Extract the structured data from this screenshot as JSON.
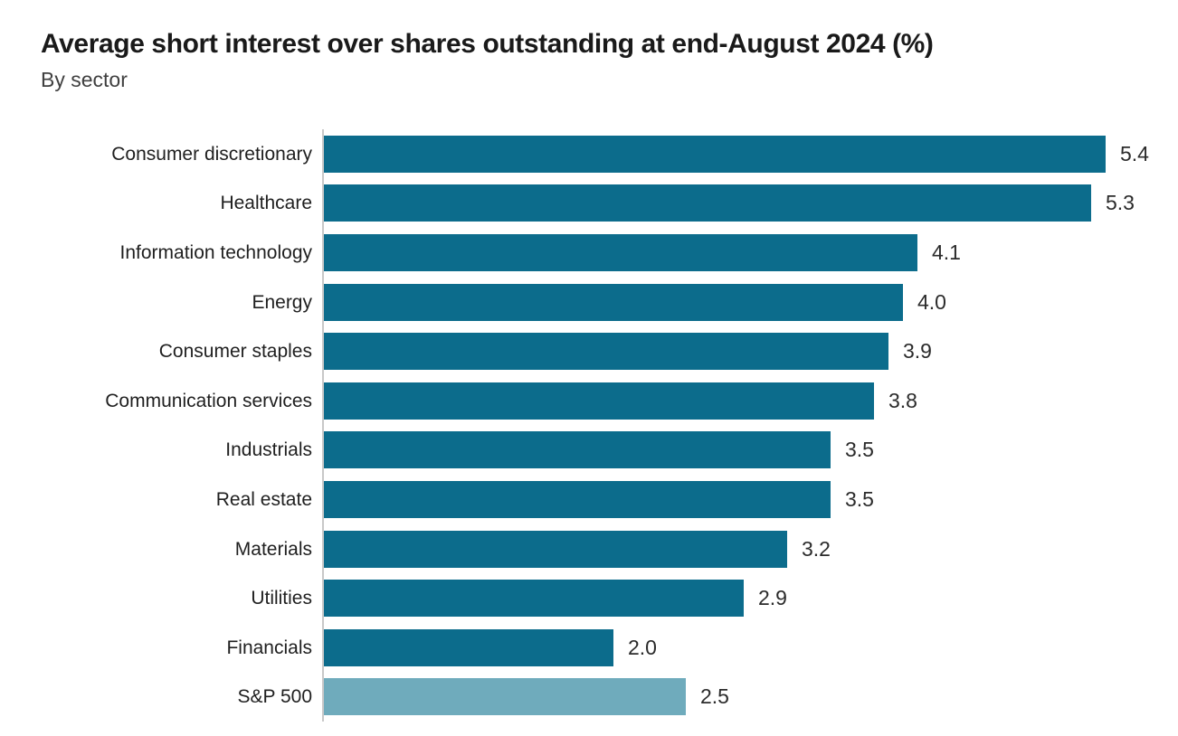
{
  "header": {
    "title": "Average short interest over shares outstanding at end-August 2024 (%)",
    "subtitle": "By sector"
  },
  "chart_data": {
    "type": "bar",
    "orientation": "horizontal",
    "title": "Average short interest over shares outstanding at end-August 2024 (%)",
    "subtitle": "By sector",
    "categories": [
      "Consumer discretionary",
      "Healthcare",
      "Information technology",
      "Energy",
      "Consumer staples",
      "Communication services",
      "Industrials",
      "Real estate",
      "Materials",
      "Utilities",
      "Financials",
      "S&P 500"
    ],
    "values": [
      5.4,
      5.3,
      4.1,
      4.0,
      3.9,
      3.8,
      3.5,
      3.5,
      3.2,
      2.9,
      2.0,
      2.5
    ],
    "value_labels": [
      "5.4",
      "5.3",
      "4.1",
      "4.0",
      "3.9",
      "3.8",
      "3.5",
      "3.5",
      "3.2",
      "2.9",
      "2.0",
      "2.5"
    ],
    "xlim": [
      0,
      5.9
    ],
    "grid": false,
    "legend": false,
    "highlight_category": "S&P 500",
    "colors": {
      "sector_bar": "#0c6c8c",
      "benchmark_bar": "#6fabbc",
      "axis_line": "#c8c8c8",
      "title_text": "#1a1a1a",
      "subtitle_text": "#404040",
      "category_label_text": "#1f1f1f",
      "value_label_text": "#2b2b2b"
    }
  }
}
